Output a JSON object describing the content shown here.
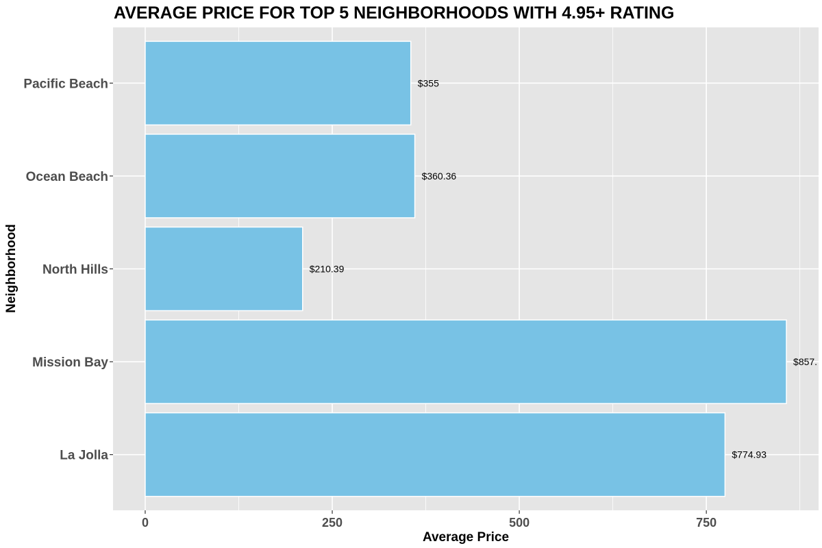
{
  "chart_data": {
    "type": "bar",
    "orientation": "horizontal",
    "title": "AVERAGE PRICE FOR TOP 5 NEIGHBORHOODS WITH 4.95+ RATING",
    "xlabel": "Average Price",
    "ylabel": "Neighborhood",
    "categories": [
      "Pacific Beach",
      "Ocean Beach",
      "North Hills",
      "Mission Bay",
      "La Jolla"
    ],
    "values": [
      355,
      360.36,
      210.39,
      857,
      774.93
    ],
    "data_labels": [
      "$355",
      "$360.36",
      "$210.39",
      "$857.",
      "$774.93"
    ],
    "x_ticks": [
      0,
      250,
      500,
      750
    ],
    "x_tick_labels": [
      "0",
      "250",
      "500",
      "750"
    ],
    "xlim": [
      -43,
      900
    ],
    "grid": true,
    "colors": {
      "panel": "#e5e5e5",
      "grid": "#ffffff",
      "bar_fill": "#78c2e5",
      "bar_stroke": "#ffffff"
    }
  }
}
